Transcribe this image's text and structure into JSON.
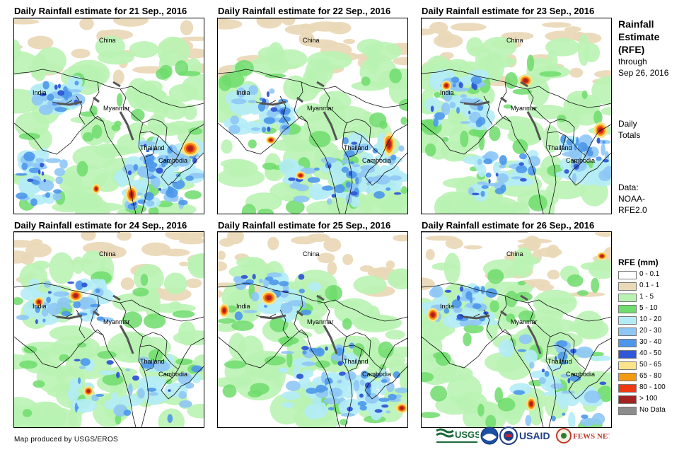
{
  "panels": [
    {
      "title": "Daily Rainfall estimate for 21 Sep., 2016"
    },
    {
      "title": "Daily Rainfall estimate for 22 Sep., 2016"
    },
    {
      "title": "Daily Rainfall estimate for 23 Sep., 2016"
    },
    {
      "title": "Daily Rainfall estimate for 24 Sep., 2016"
    },
    {
      "title": "Daily Rainfall estimate for 25 Sep., 2016"
    },
    {
      "title": "Daily Rainfall estimate for 26 Sep., 2016"
    }
  ],
  "place_labels": {
    "china": "China",
    "india": "India",
    "myanmar": "Myanmar",
    "thailand": "Thailand",
    "cambodia": "Cambodia"
  },
  "sidebar": {
    "heading_line1": "Rainfall",
    "heading_line2": "Estimate",
    "heading_line3": "(RFE)",
    "through": "through",
    "date": "Sep 26, 2016",
    "totals_line1": "Daily",
    "totals_line2": "Totals",
    "data_line1": "Data:",
    "data_line2": "NOAA-",
    "data_line3": "RFE2.0"
  },
  "legend": {
    "title": "RFE (mm)",
    "items": [
      {
        "label": "0 - 0.1",
        "color": "#ffffff"
      },
      {
        "label": "0.1 - 1",
        "color": "#ead9b8"
      },
      {
        "label": "1 - 5",
        "color": "#b9f3b2"
      },
      {
        "label": "5 - 10",
        "color": "#6fdc6c"
      },
      {
        "label": "10 - 20",
        "color": "#b4ecf6"
      },
      {
        "label": "20 - 30",
        "color": "#8ec6f5"
      },
      {
        "label": "30 - 40",
        "color": "#4d97ea"
      },
      {
        "label": "40 - 50",
        "color": "#2f57d6"
      },
      {
        "label": "50 - 65",
        "color": "#fbe38a"
      },
      {
        "label": "65 - 80",
        "color": "#f39a11"
      },
      {
        "label": "80 - 100",
        "color": "#ee3a12"
      },
      {
        "label": "> 100",
        "color": "#a4221f"
      },
      {
        "label": "No Data",
        "color": "#8c8c8c"
      }
    ]
  },
  "footer": {
    "credit": "Map produced by USGS/EROS",
    "logo_usgs": "USGS",
    "logo_noaa": "NOAA",
    "logo_usaid": "USAID",
    "logo_fews": "FEWS NET"
  }
}
